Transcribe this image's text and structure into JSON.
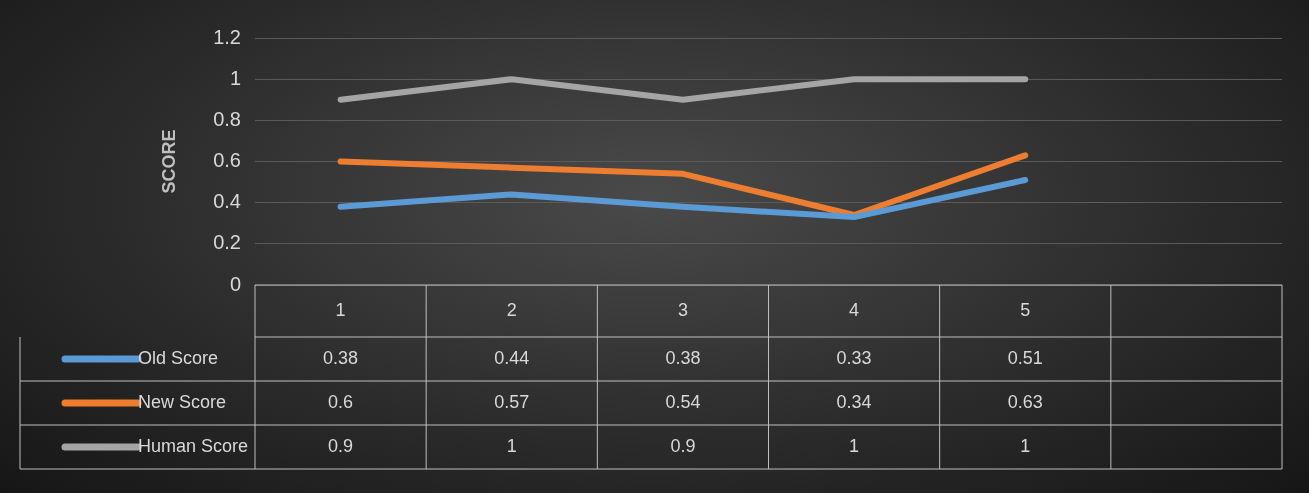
{
  "chart_data": {
    "type": "line",
    "ylabel": "SCORE",
    "categories": [
      "1",
      "2",
      "3",
      "4",
      "5",
      null
    ],
    "series": [
      {
        "name": "Old Score",
        "color": "#5b9bd5",
        "values": [
          0.38,
          0.44,
          0.38,
          0.33,
          0.51,
          null
        ]
      },
      {
        "name": "New Score",
        "color": "#ed7d31",
        "values": [
          0.6,
          0.57,
          0.54,
          0.34,
          0.63,
          null
        ]
      },
      {
        "name": "Human Score",
        "color": "#a5a5a5",
        "values": [
          0.9,
          1,
          0.9,
          1,
          1,
          null
        ]
      }
    ],
    "ylim": [
      0,
      1.2
    ],
    "yticks": [
      0,
      0.2,
      0.4,
      0.6,
      0.8,
      1,
      1.2
    ],
    "grid": true,
    "legend": "bottom",
    "marker": "none",
    "line_style": "solid",
    "data_labels": true
  }
}
